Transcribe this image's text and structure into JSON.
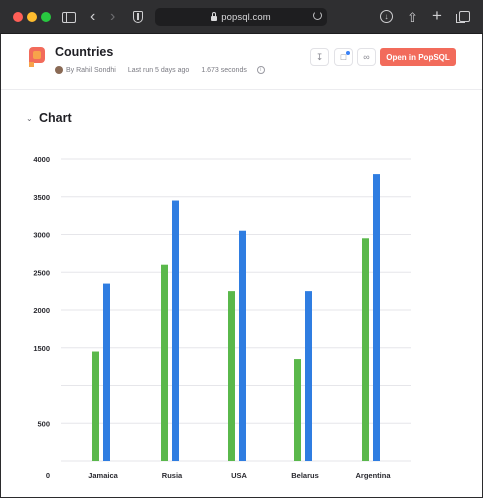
{
  "browser": {
    "url": "popsql.com"
  },
  "header": {
    "title": "Countries",
    "author": "By Rahil Sondhi",
    "last_run": "Last run 5 days ago",
    "duration": "1.673 seconds",
    "open_button": "Open in PopSQL"
  },
  "section": {
    "title": "Chart"
  },
  "colors": {
    "series_green": "#5ab84b",
    "series_blue": "#2f7de1",
    "accent": "#f26b5b"
  },
  "chart_data": {
    "type": "bar",
    "categories": [
      "Jamaica",
      "Rusia",
      "USA",
      "Belarus",
      "Argentina"
    ],
    "series": [
      {
        "values": [
          1450,
          2600,
          2250,
          1350,
          2950
        ]
      },
      {
        "values": [
          2350,
          3450,
          3050,
          2250,
          3800
        ]
      }
    ],
    "yticks": [
      0,
      500,
      1000,
      1500,
      2000,
      2500,
      3000,
      3500,
      4000
    ],
    "ytick_labels": [
      "0",
      "500",
      "",
      "1500",
      "2000",
      "2500",
      "3000",
      "3500",
      "4000"
    ],
    "ylim": [
      0,
      4000
    ],
    "grid": true,
    "legend": "none"
  }
}
